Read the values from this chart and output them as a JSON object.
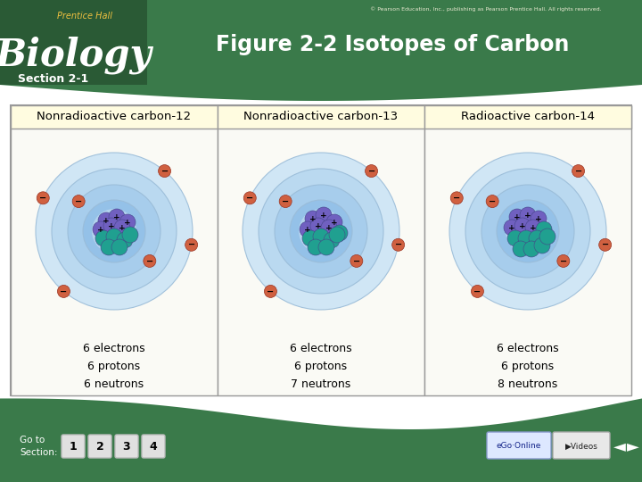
{
  "title": "Figure 2-2 Isotopes of Carbon",
  "section": "Section 2-1",
  "copyright": "© Pearson Education, Inc., publishing as Pearson Prentice Hall. All rights reserved.",
  "header_color": "#3a7a4a",
  "header_dark": "#2a5a35",
  "body_bg": "#ffffff",
  "table_bg": "#fafaf5",
  "table_header_bg": "#fffce0",
  "isotopes": [
    {
      "title": "Nonradioactive carbon-12",
      "protons": 6,
      "neutrons": 6,
      "label": "6 electrons\n6 protons\n6 neutrons"
    },
    {
      "title": "Nonradioactive carbon-13",
      "protons": 6,
      "neutrons": 7,
      "label": "6 electrons\n6 protons\n7 neutrons"
    },
    {
      "title": "Radioactive carbon-14",
      "protons": 6,
      "neutrons": 8,
      "label": "6 electrons\n6 protons\n8 neutrons"
    }
  ],
  "proton_color": "#7060c0",
  "neutron_color": "#20a090",
  "electron_color": "#d06040",
  "orbit_colors": [
    "#d8eef8",
    "#c5e2f5",
    "#b0d5f0",
    "#9dc8eb"
  ],
  "nav_buttons": [
    "1",
    "2",
    "3",
    "4"
  ],
  "go_to_section": "Go to\nSection:"
}
